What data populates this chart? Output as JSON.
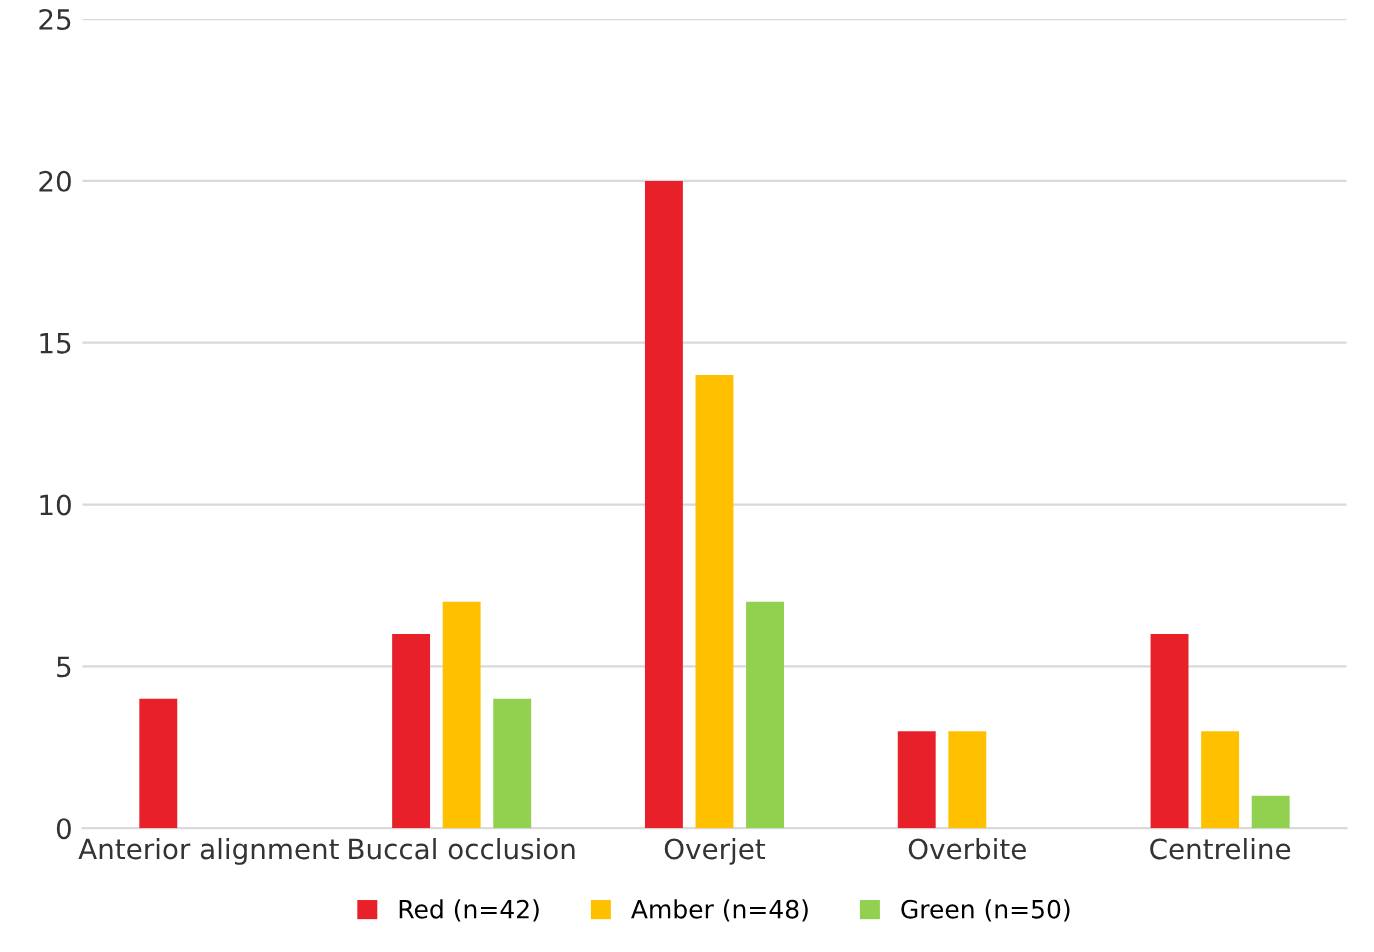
{
  "chart_data": {
    "type": "bar",
    "categories": [
      "Anterior alignment",
      "Buccal occlusion",
      "Overjet",
      "Overbite",
      "Centreline"
    ],
    "series": [
      {
        "name": "Red (n=42)",
        "color": "#e8202a",
        "values": [
          4,
          6,
          20,
          3,
          6
        ]
      },
      {
        "name": "Amber (n=48)",
        "color": "#ffc000",
        "values": [
          0,
          7,
          14,
          3,
          3
        ]
      },
      {
        "name": "Green (n=50)",
        "color": "#92d050",
        "values": [
          0,
          4,
          7,
          0,
          1
        ]
      }
    ],
    "ylim": [
      0,
      25
    ],
    "yticks": [
      0,
      5,
      10,
      15,
      20,
      25
    ],
    "grid": "y",
    "legend": "bottom"
  }
}
